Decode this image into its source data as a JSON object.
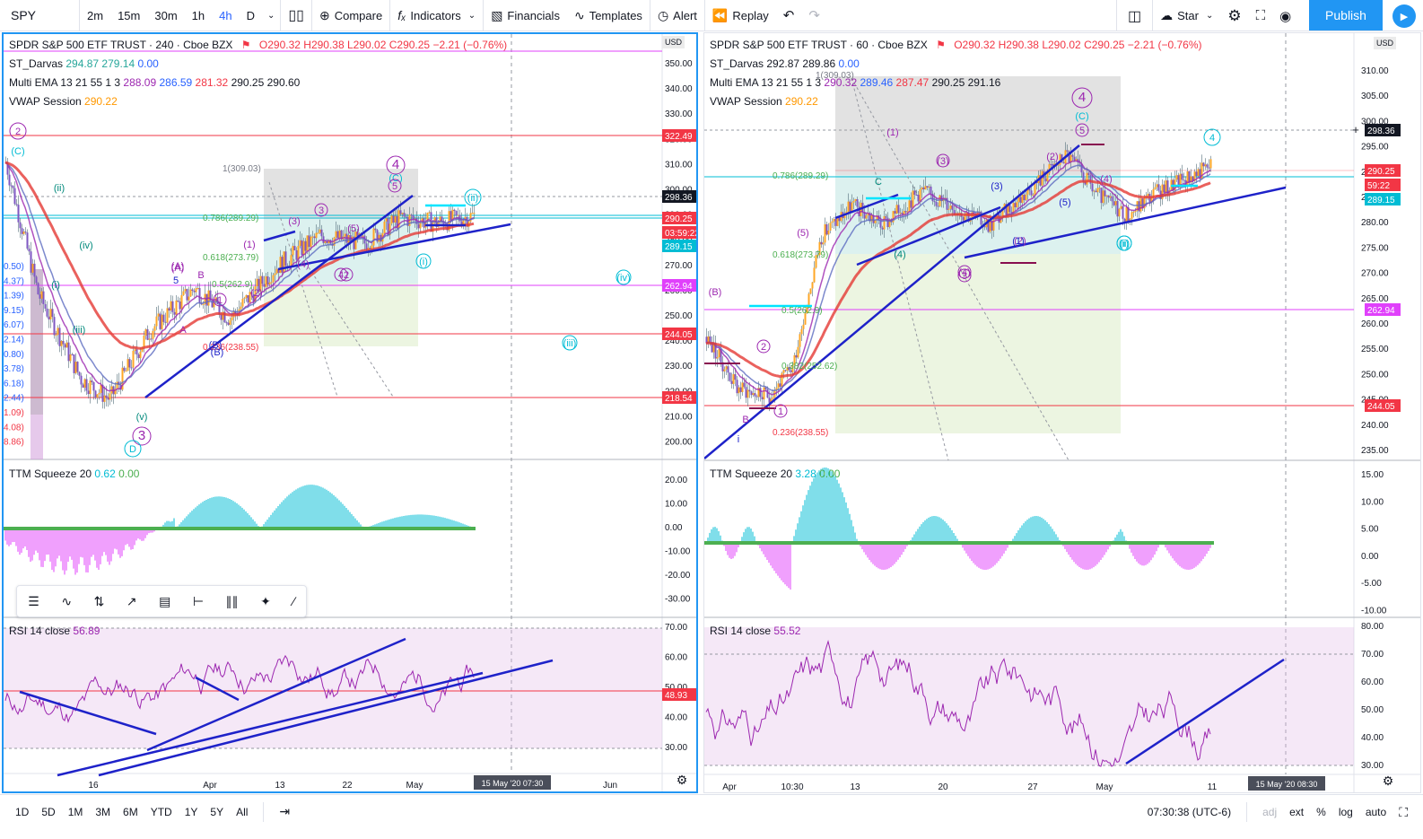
{
  "toolbar": {
    "symbol": "SPY",
    "intervals": [
      "2m",
      "15m",
      "30m",
      "1h",
      "4h",
      "D"
    ],
    "active_interval": "4h",
    "compare": "Compare",
    "indicators": "Indicators",
    "financials": "Financials",
    "templates": "Templates",
    "alert": "Alert",
    "replay": "Replay",
    "star": "Star",
    "publish": "Publish"
  },
  "left_chart": {
    "title": "SPDR S&P 500 ETF TRUST · 240 · Cboe BZX",
    "ohlc": {
      "o": "O290.32",
      "h": "H290.38",
      "l": "L290.02",
      "c": "C290.25",
      "chg": "−2.21 (−0.76%)"
    },
    "darvas": {
      "label": "ST_Darvas",
      "v1": "294.87",
      "v2": "279.14",
      "v3": "0.00"
    },
    "ema": {
      "label": "Multi EMA 13 21 55 1 3",
      "v1": "288.09",
      "v2": "286.59",
      "v3": "281.32",
      "v4": "290.25",
      "v5": "290.60"
    },
    "vwap": {
      "label": "VWAP Session",
      "v1": "290.22"
    },
    "ttm": {
      "label": "TTM Squeeze 20",
      "v1": "0.62",
      "v2": "0.00"
    },
    "rsi": {
      "label": "RSI 14 close",
      "v1": "56.89"
    },
    "currency": "USD",
    "price_axis": [
      "350.00",
      "340.00",
      "330.00",
      "320.00",
      "310.00",
      "300.00",
      "290.00",
      "280.00",
      "270.00",
      "260.00",
      "250.00",
      "240.00",
      "230.00",
      "220.00",
      "210.00",
      "200.00"
    ],
    "ttm_axis": [
      "20.00",
      "10.00",
      "0.00",
      "-10.00",
      "-20.00",
      "-30.00"
    ],
    "rsi_axis": [
      "70.00",
      "60.00",
      "50.00",
      "40.00",
      "30.00"
    ],
    "price_tags": [
      {
        "label": "322.49",
        "color": "#f23645"
      },
      {
        "label": "298.36",
        "color": "#131722"
      },
      {
        "label": "290.25",
        "color": "#f23645"
      },
      {
        "label": "03:59:22",
        "color": "#f23645"
      },
      {
        "label": "289.15",
        "color": "#00bcd4"
      },
      {
        "label": "262.94",
        "color": "#e040fb"
      },
      {
        "label": "244.05",
        "color": "#f23645"
      },
      {
        "label": "218.54",
        "color": "#f23645"
      }
    ],
    "rsi_tag": "48.93",
    "time_axis": [
      "16",
      "Apr",
      "13",
      "22",
      "May",
      "Jun"
    ],
    "time_cursor": "15 May '20   07:30",
    "fib_labels": [
      "1(309.03)",
      "0.786(289.29)",
      "0.618(273.79)",
      "0.5(262.9)",
      "0.236(238.55)"
    ],
    "left_fib": [
      "0.50)",
      "4.37)",
      "1.39)",
      "9.15)",
      "6.07)",
      "2.14)",
      "0.80)",
      "3.78)",
      "6.18)",
      "2.44)",
      "1.09)",
      "4.08)",
      "8.86)"
    ],
    "waves": [
      "2",
      "(C)",
      "(ii)",
      "(iv)",
      "(iii)",
      "(i)",
      "(v)",
      "3",
      "D",
      "4",
      "(C)",
      "(ii)",
      "(iv)",
      "(iii)",
      "(i)",
      "(A)",
      "(B)",
      "B",
      "5",
      "(1)",
      "(2)",
      "(3)",
      "(4)",
      "(5)",
      "1",
      "2",
      "3",
      "4",
      "5",
      "(A)",
      "A",
      "(B)"
    ]
  },
  "right_chart": {
    "title": "SPDR S&P 500 ETF TRUST · 60 · Cboe BZX",
    "ohlc": {
      "o": "O290.32",
      "h": "H290.38",
      "l": "L290.02",
      "c": "C290.25",
      "chg": "−2.21 (−0.76%)"
    },
    "darvas": {
      "label": "ST_Darvas",
      "v1": "292.87",
      "v2": "289.86",
      "v3": "0.00"
    },
    "ema": {
      "label": "Multi EMA 13 21 55 1 3",
      "v1": "290.32",
      "v2": "289.46",
      "v3": "287.47",
      "v4": "290.25",
      "v5": "291.16"
    },
    "vwap": {
      "label": "VWAP Session",
      "v1": "290.22"
    },
    "ttm": {
      "label": "TTM Squeeze 20",
      "v1": "3.28",
      "v2": "0.00"
    },
    "rsi": {
      "label": "RSI 14 close",
      "v1": "55.52"
    },
    "currency": "USD",
    "price_axis": [
      "310.00",
      "305.00",
      "300.00",
      "295.00",
      "290.00",
      "285.00",
      "280.00",
      "275.00",
      "270.00",
      "265.00",
      "260.00",
      "255.00",
      "250.00",
      "245.00",
      "240.00",
      "235.00"
    ],
    "ttm_axis": [
      "15.00",
      "10.00",
      "5.00",
      "0.00",
      "-5.00",
      "-10.00"
    ],
    "rsi_axis": [
      "80.00",
      "70.00",
      "60.00",
      "50.00",
      "40.00",
      "30.00"
    ],
    "price_tags": [
      {
        "label": "298.36",
        "color": "#131722"
      },
      {
        "label": "290.25",
        "color": "#f23645"
      },
      {
        "label": "59:22",
        "color": "#f23645"
      },
      {
        "label": "289.15",
        "color": "#00bcd4"
      },
      {
        "label": "262.94",
        "color": "#e040fb"
      },
      {
        "label": "244.05",
        "color": "#f23645"
      }
    ],
    "time_axis": [
      "Apr",
      "10:30",
      "13",
      "20",
      "27",
      "May",
      "11"
    ],
    "time_cursor": "15 May '20   08:30",
    "fib_labels": [
      "1(309.03)",
      "0.786(289.29)",
      "0.618(273.79)",
      "0.5(262.9)",
      "0.382(252.62)",
      "0.236(238.55)"
    ],
    "waves": [
      "4",
      "(C)",
      "5",
      "(1)",
      "(2)",
      "(3)",
      "(4)",
      "(5)",
      "1",
      "2",
      "3",
      "4",
      "(ii)",
      "(i)",
      "i",
      "(B)",
      "B",
      "C",
      "(3)",
      "(1)",
      "(2)",
      "(5)",
      "(4)",
      "(4)",
      "(2)"
    ]
  },
  "bottombar": {
    "ranges": [
      "1D",
      "5D",
      "1M",
      "3M",
      "6M",
      "YTD",
      "1Y",
      "5Y",
      "All"
    ],
    "clock": "07:30:38 (UTC-6)",
    "adj": "adj",
    "ext": "ext",
    "pct": "%",
    "log": "log",
    "auto": "auto"
  }
}
